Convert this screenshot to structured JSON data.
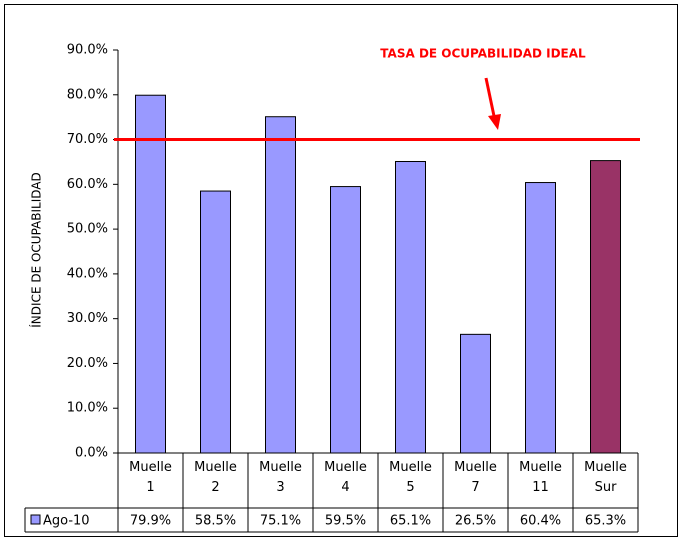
{
  "chart_data": {
    "type": "bar",
    "y_axis_label": "ÍNDICE DE OCUPABILIDAD",
    "categories": [
      "Muelle 1",
      "Muelle 2",
      "Muelle 3",
      "Muelle 4",
      "Muelle 5",
      "Muelle 7",
      "Muelle 11",
      "Muelle Sur"
    ],
    "series": [
      {
        "name": "Ago-10",
        "color": "#9999ff",
        "colors": [
          "#9999ff",
          "#9999ff",
          "#9999ff",
          "#9999ff",
          "#9999ff",
          "#9999ff",
          "#9999ff",
          "#993366"
        ],
        "values": [
          79.9,
          58.5,
          75.1,
          59.5,
          65.1,
          26.5,
          60.4,
          65.3
        ],
        "value_labels": [
          "79.9%",
          "58.5%",
          "75.1%",
          "59.5%",
          "65.1%",
          "26.5%",
          "60.4%",
          "65.3%"
        ]
      }
    ],
    "reference_line": {
      "value": 70,
      "label": "TASA DE OCUPABILIDAD IDEAL",
      "color": "#ff0000"
    },
    "ylim": [
      0,
      90
    ],
    "yticks": [
      {
        "value": 0,
        "label": "0.0%"
      },
      {
        "value": 10,
        "label": "10.0%"
      },
      {
        "value": 20,
        "label": "20.0%"
      },
      {
        "value": 30,
        "label": "30.0%"
      },
      {
        "value": 40,
        "label": "40.0%"
      },
      {
        "value": 50,
        "label": "50.0%"
      },
      {
        "value": 60,
        "label": "60.0%"
      },
      {
        "value": 70,
        "label": "70.0%"
      },
      {
        "value": 80,
        "label": "80.0%"
      },
      {
        "value": 90,
        "label": "90.0%"
      }
    ],
    "grid": false
  }
}
